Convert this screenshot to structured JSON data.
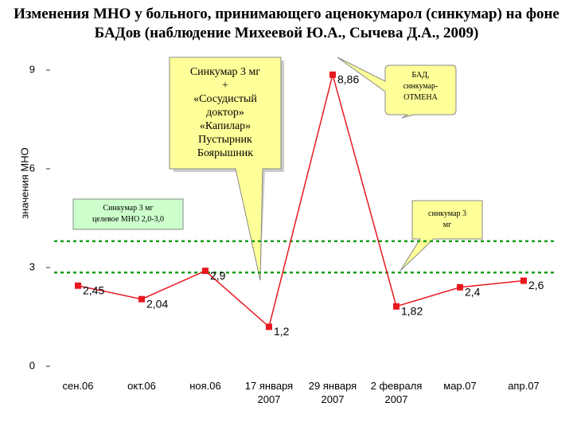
{
  "chart_data": {
    "type": "line",
    "title": "Изменения МНО у больного, принимающего аценокумарол (синкумар) на фоне БАДов (наблюдение Михеевой Ю.А., Сычева Д.А., 2009)",
    "y_label": "значения МНО",
    "categories": [
      "сен.06",
      "окт.06",
      "ноя.06",
      "17 января 2007",
      "29 января 2007",
      "2 февраля 2007",
      "мар.07",
      "апр.07"
    ],
    "series": [
      {
        "color": "#e8191f",
        "values": [
          2.45,
          2.04,
          2.9,
          1.2,
          8.86,
          1.82,
          2.4,
          2.6
        ],
        "value_labels": [
          "2,45",
          "2,04",
          "2,9",
          "1,2",
          "8,86",
          "1,82",
          "2,4",
          "2,6"
        ]
      }
    ],
    "ylim": [
      0,
      9
    ],
    "yticks": [
      0,
      3,
      6,
      9
    ],
    "reference_lines": {
      "color": "#1a9a1a",
      "values": [
        3.8,
        2.85
      ]
    },
    "annotations": [
      {
        "lines": [
          "Синкумар 3 мг",
          "+",
          "«Сосудистый",
          "доктор»",
          "«Капилар»",
          "Пустырник",
          "Боярышник"
        ]
      },
      {
        "lines": [
          "БАД,",
          "синкумар-",
          "ОТМЕНА"
        ]
      },
      {
        "lines": [
          "Синкумар 3 мг",
          "целевое МНО 2,0-3,0"
        ]
      },
      {
        "lines": [
          "синкумар 3",
          "мг"
        ]
      }
    ]
  }
}
